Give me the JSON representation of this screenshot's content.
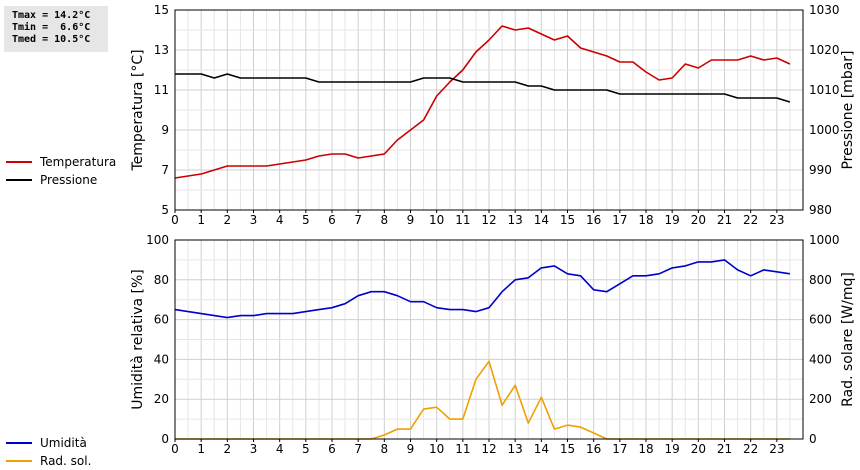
{
  "stats": {
    "tmax": "Tmax = 14.2°C",
    "tmin": "Tmin =  6.6°C",
    "tmed": "Tmed = 10.5°C"
  },
  "legend_top": [
    {
      "label": "Temperatura",
      "color": "#cc0000"
    },
    {
      "label": "Pressione",
      "color": "#000000"
    }
  ],
  "legend_bottom": [
    {
      "label": "Umidità",
      "color": "#0000cc"
    },
    {
      "label": "Rad. sol.",
      "color": "#f0a000"
    }
  ],
  "chart_data": [
    {
      "type": "line",
      "xlim": [
        0,
        24
      ],
      "x_ticks": [
        0,
        1,
        2,
        3,
        4,
        5,
        6,
        7,
        8,
        9,
        10,
        11,
        12,
        13,
        14,
        15,
        16,
        17,
        18,
        19,
        20,
        21,
        22,
        23
      ],
      "ylabel": "Temperatura [°C]",
      "ylim": [
        5,
        15
      ],
      "y_ticks": [
        5,
        7,
        9,
        11,
        13,
        15
      ],
      "y2label": "Pressione [mbar]",
      "y2lim": [
        980,
        1030
      ],
      "y2_ticks": [
        980,
        990,
        1000,
        1010,
        1020,
        1030
      ],
      "grid": true,
      "series": [
        {
          "name": "Temperatura",
          "color": "#cc0000",
          "axis": "left",
          "x": [
            0,
            0.5,
            1,
            1.5,
            2,
            2.5,
            3,
            3.5,
            4,
            4.5,
            5,
            5.5,
            6,
            6.5,
            7,
            7.5,
            8,
            8.5,
            9,
            9.5,
            10,
            10.5,
            11,
            11.5,
            12,
            12.5,
            13,
            13.5,
            14,
            14.5,
            15,
            15.5,
            16,
            16.5,
            17,
            17.5,
            18,
            18.5,
            19,
            19.5,
            20,
            20.5,
            21,
            21.5,
            22,
            22.5,
            23,
            23.5
          ],
          "y": [
            6.6,
            6.7,
            6.8,
            7.0,
            7.2,
            7.2,
            7.2,
            7.2,
            7.3,
            7.4,
            7.5,
            7.7,
            7.8,
            7.8,
            7.6,
            7.7,
            7.8,
            8.5,
            9.0,
            9.5,
            10.7,
            11.4,
            12.0,
            12.9,
            13.5,
            14.2,
            14.0,
            14.1,
            13.8,
            13.5,
            13.7,
            13.1,
            12.9,
            12.7,
            12.4,
            12.4,
            11.9,
            11.5,
            11.6,
            12.3,
            12.1,
            12.5,
            12.5,
            12.5,
            12.7,
            12.5,
            12.6,
            12.3
          ]
        },
        {
          "name": "Pressione",
          "color": "#000000",
          "axis": "right",
          "x": [
            0,
            0.5,
            1,
            1.5,
            2,
            2.5,
            3,
            3.5,
            4,
            4.5,
            5,
            5.5,
            6,
            6.5,
            7,
            7.5,
            8,
            8.5,
            9,
            9.5,
            10,
            10.5,
            11,
            11.5,
            12,
            12.5,
            13,
            13.5,
            14,
            14.5,
            15,
            15.5,
            16,
            16.5,
            17,
            17.5,
            18,
            18.5,
            19,
            19.5,
            20,
            20.5,
            21,
            21.5,
            22,
            22.5,
            23,
            23.5
          ],
          "y": [
            1014,
            1014,
            1014,
            1013,
            1014,
            1013,
            1013,
            1013,
            1013,
            1013,
            1013,
            1012,
            1012,
            1012,
            1012,
            1012,
            1012,
            1012,
            1012,
            1013,
            1013,
            1013,
            1012,
            1012,
            1012,
            1012,
            1012,
            1011,
            1011,
            1010,
            1010,
            1010,
            1010,
            1010,
            1009,
            1009,
            1009,
            1009,
            1009,
            1009,
            1009,
            1009,
            1009,
            1008,
            1008,
            1008,
            1008,
            1007
          ]
        }
      ]
    },
    {
      "type": "line",
      "xlim": [
        0,
        24
      ],
      "x_ticks": [
        0,
        1,
        2,
        3,
        4,
        5,
        6,
        7,
        8,
        9,
        10,
        11,
        12,
        13,
        14,
        15,
        16,
        17,
        18,
        19,
        20,
        21,
        22,
        23
      ],
      "ylabel": "Umidità relativa [%]",
      "ylim": [
        0,
        100
      ],
      "y_ticks": [
        0,
        20,
        40,
        60,
        80,
        100
      ],
      "y2label": "Rad. solare [W/mq]",
      "y2lim": [
        0,
        1000
      ],
      "y2_ticks": [
        0,
        200,
        400,
        600,
        800,
        1000
      ],
      "grid": true,
      "series": [
        {
          "name": "Umidità",
          "color": "#0000cc",
          "axis": "left",
          "x": [
            0,
            0.5,
            1,
            1.5,
            2,
            2.5,
            3,
            3.5,
            4,
            4.5,
            5,
            5.5,
            6,
            6.5,
            7,
            7.5,
            8,
            8.5,
            9,
            9.5,
            10,
            10.5,
            11,
            11.5,
            12,
            12.5,
            13,
            13.5,
            14,
            14.5,
            15,
            15.5,
            16,
            16.5,
            17,
            17.5,
            18,
            18.5,
            19,
            19.5,
            20,
            20.5,
            21,
            21.5,
            22,
            22.5,
            23,
            23.5
          ],
          "y": [
            65,
            64,
            63,
            62,
            61,
            62,
            62,
            63,
            63,
            63,
            64,
            65,
            66,
            68,
            72,
            74,
            74,
            72,
            69,
            69,
            66,
            65,
            65,
            64,
            66,
            74,
            80,
            81,
            86,
            87,
            83,
            82,
            75,
            74,
            78,
            82,
            82,
            83,
            86,
            87,
            89,
            89,
            90,
            85,
            82,
            85,
            84,
            83
          ]
        },
        {
          "name": "Rad. sol.",
          "color": "#f0a000",
          "axis": "right",
          "x": [
            0,
            0.5,
            1,
            1.5,
            2,
            2.5,
            3,
            3.5,
            4,
            4.5,
            5,
            5.5,
            6,
            6.5,
            7,
            7.5,
            8,
            8.5,
            9,
            9.5,
            10,
            10.5,
            11,
            11.5,
            12,
            12.5,
            13,
            13.5,
            14,
            14.5,
            15,
            15.5,
            16,
            16.5,
            17,
            17.5,
            18,
            18.5,
            19,
            19.5,
            20,
            20.5,
            21,
            21.5,
            22,
            22.5,
            23,
            23.5
          ],
          "y": [
            0,
            0,
            0,
            0,
            0,
            0,
            0,
            0,
            0,
            0,
            0,
            0,
            0,
            0,
            0,
            0,
            20,
            50,
            50,
            150,
            160,
            100,
            100,
            300,
            390,
            170,
            270,
            80,
            210,
            50,
            70,
            60,
            30,
            0,
            0,
            0,
            0,
            0,
            0,
            0,
            0,
            0,
            0,
            0,
            0,
            0,
            0,
            0
          ]
        }
      ]
    }
  ]
}
